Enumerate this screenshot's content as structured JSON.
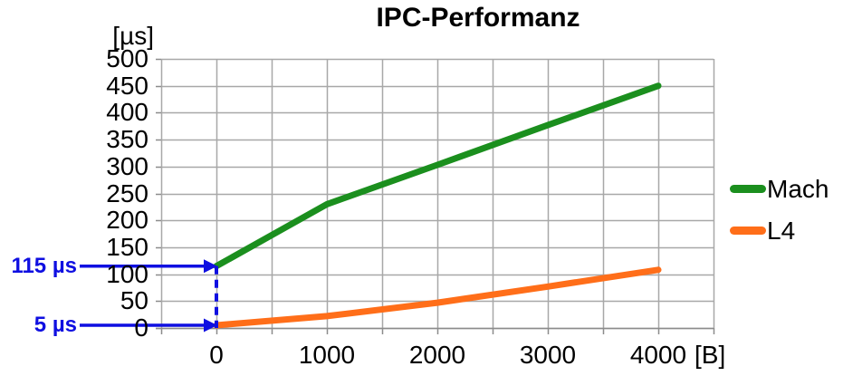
{
  "title": "IPC-Performanz",
  "colors": {
    "mach_line": "#1b8f1e",
    "l4_line": "#ff6e19",
    "annotation_blue": "#0f0fe1",
    "gridline": "#a8a8a8",
    "axis": "#8c8c8c",
    "text": "#000000",
    "background": "#ffffff"
  },
  "legend": {
    "position": "right",
    "items": [
      {
        "label": "Mach",
        "color": "#1b8f1e"
      },
      {
        "label": "L4",
        "color": "#ff6e19"
      }
    ]
  },
  "chart_data": {
    "type": "line",
    "title": "IPC-Performanz",
    "xlabel": "[B]",
    "ylabel": "[µs]",
    "x": [
      0,
      1000,
      2000,
      3000,
      4000
    ],
    "series": [
      {
        "name": "Mach",
        "color": "#1b8f1e",
        "values": [
          115,
          230,
          303,
          377,
          450
        ]
      },
      {
        "name": "L4",
        "color": "#ff6e19",
        "values": [
          5,
          22,
          47,
          77,
          108
        ]
      }
    ],
    "xlim": [
      -500,
      4500
    ],
    "ylim": [
      0,
      500
    ],
    "x_ticks": [
      0,
      1000,
      2000,
      3000,
      4000
    ],
    "x_grid_step": 500,
    "y_ticks": [
      0,
      50,
      100,
      150,
      200,
      250,
      300,
      350,
      400,
      450,
      500
    ],
    "grid": true,
    "legend_position": "right",
    "annotations": [
      {
        "text": "115 µs",
        "x": 0,
        "y": 115,
        "series": "Mach",
        "style": "arrow-with-dashed-dropline"
      },
      {
        "text": "5 µs",
        "x": 0,
        "y": 5,
        "series": "L4",
        "style": "arrow"
      }
    ]
  }
}
